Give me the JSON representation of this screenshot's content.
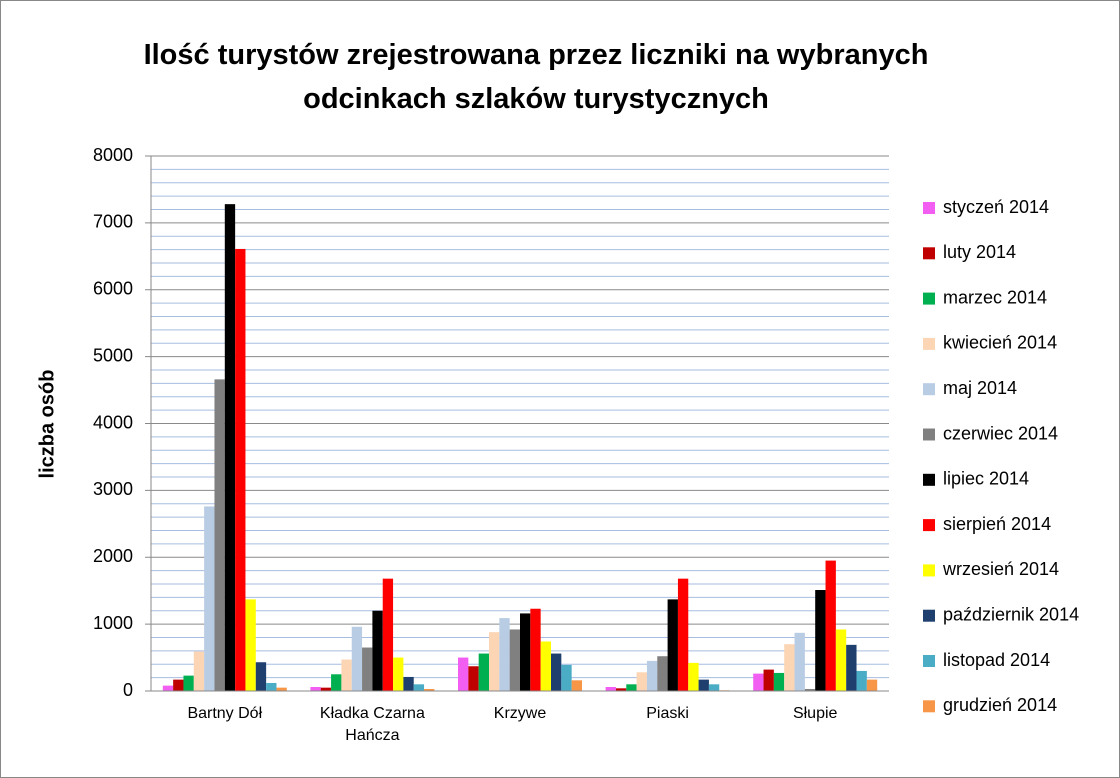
{
  "chart_data": {
    "type": "bar",
    "title": "Ilość turystów zrejestrowana przez liczniki na wybranych odcinkach szlaków turystycznych",
    "y_label": "liczba osób",
    "categories": [
      "Bartny Dół",
      "Kładka Czarna Hańcza",
      "Krzywe",
      "Piaski",
      "Słupie"
    ],
    "series": [
      {
        "name": "styczeń 2014",
        "color": "#f25df2",
        "values": [
          80,
          60,
          500,
          60,
          260
        ]
      },
      {
        "name": "luty 2014",
        "color": "#c00000",
        "values": [
          170,
          50,
          370,
          40,
          320
        ]
      },
      {
        "name": "marzec 2014",
        "color": "#00b050",
        "values": [
          230,
          250,
          560,
          100,
          270
        ]
      },
      {
        "name": "kwiecień 2014",
        "color": "#fcd5b4",
        "values": [
          590,
          470,
          880,
          280,
          700
        ]
      },
      {
        "name": "maj 2014",
        "color": "#b8cce4",
        "values": [
          2760,
          960,
          1090,
          450,
          870
        ]
      },
      {
        "name": "czerwiec 2014",
        "color": "#808080",
        "values": [
          4660,
          650,
          920,
          520,
          30
        ]
      },
      {
        "name": "lipiec 2014",
        "color": "#000000",
        "values": [
          7280,
          1200,
          1160,
          1370,
          1510
        ]
      },
      {
        "name": "sierpień 2014",
        "color": "#ff0000",
        "values": [
          6610,
          1680,
          1230,
          1680,
          1950
        ]
      },
      {
        "name": "wrzesień 2014",
        "color": "#ffff00",
        "values": [
          1370,
          500,
          740,
          420,
          920
        ]
      },
      {
        "name": "październik 2014",
        "color": "#1f3f6e",
        "values": [
          430,
          210,
          560,
          170,
          690
        ]
      },
      {
        "name": "listopad 2014",
        "color": "#4bacc6",
        "values": [
          120,
          100,
          390,
          100,
          300
        ]
      },
      {
        "name": "grudzień 2014",
        "color": "#f79646",
        "values": [
          50,
          30,
          160,
          10,
          170
        ]
      }
    ],
    "ylim": [
      0,
      8000
    ],
    "yticks": [
      0,
      1000,
      2000,
      3000,
      4000,
      5000,
      6000,
      7000,
      8000
    ],
    "minor_yticks": [
      200,
      400,
      600,
      800,
      1200,
      1400,
      1600,
      1800,
      2200,
      2400,
      2600,
      2800,
      3200,
      3400,
      3600,
      3800,
      4200,
      4400,
      4600,
      4800,
      5200,
      5400,
      5600,
      5800,
      6200,
      6400,
      6600,
      6800,
      7200,
      7400,
      7600,
      7800
    ],
    "grid": true,
    "legend": "right"
  }
}
